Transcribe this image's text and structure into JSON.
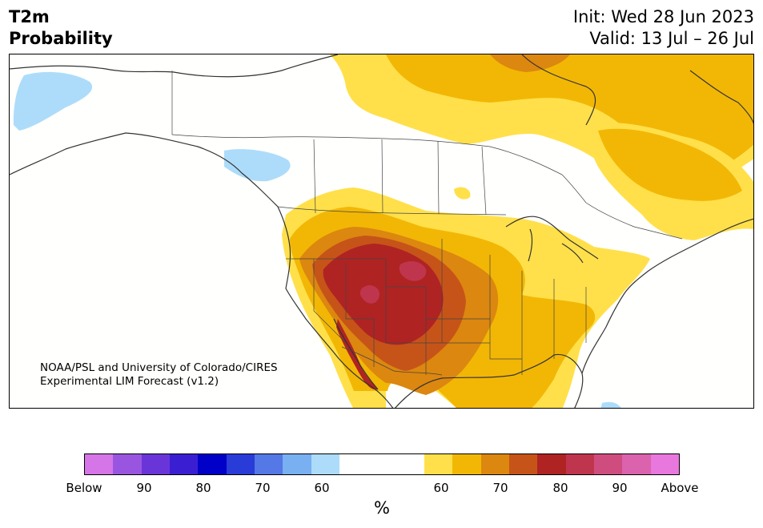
{
  "header": {
    "title_line1": "T2m",
    "title_line2": "Probability",
    "init_text": "Init: Wed 28 Jun 2023",
    "valid_text": "Valid: 13 Jul – 26 Jul"
  },
  "map": {
    "region": "North America",
    "credit_line1": "NOAA/PSL and University of Colorado/CIRES",
    "credit_line2": "Experimental LIM Forecast (v1.2)"
  },
  "legend": {
    "unit": "%",
    "tick_labels": [
      "Below",
      "90",
      "80",
      "70",
      "60",
      "60",
      "70",
      "80",
      "90",
      "Above"
    ],
    "colors": {
      "below_95": "#d575e8",
      "below_90": "#9a55e0",
      "below_85": "#6a35d8",
      "below_80": "#3a1fd2",
      "below_75": "#0000c8",
      "below_70": "#2a3cd8",
      "below_65": "#5478e6",
      "below_60": "#78b0f2",
      "below_55": "#addcfa",
      "neutral": "#ffffff",
      "above_55": "#ffe04a",
      "above_60": "#f2b705",
      "above_65": "#dc870f",
      "above_70": "#c65418",
      "above_75": "#b02323",
      "above_80": "#c0354e",
      "above_85": "#cf4d7e",
      "above_90": "#db62ad",
      "above_95": "#e878dd"
    }
  }
}
